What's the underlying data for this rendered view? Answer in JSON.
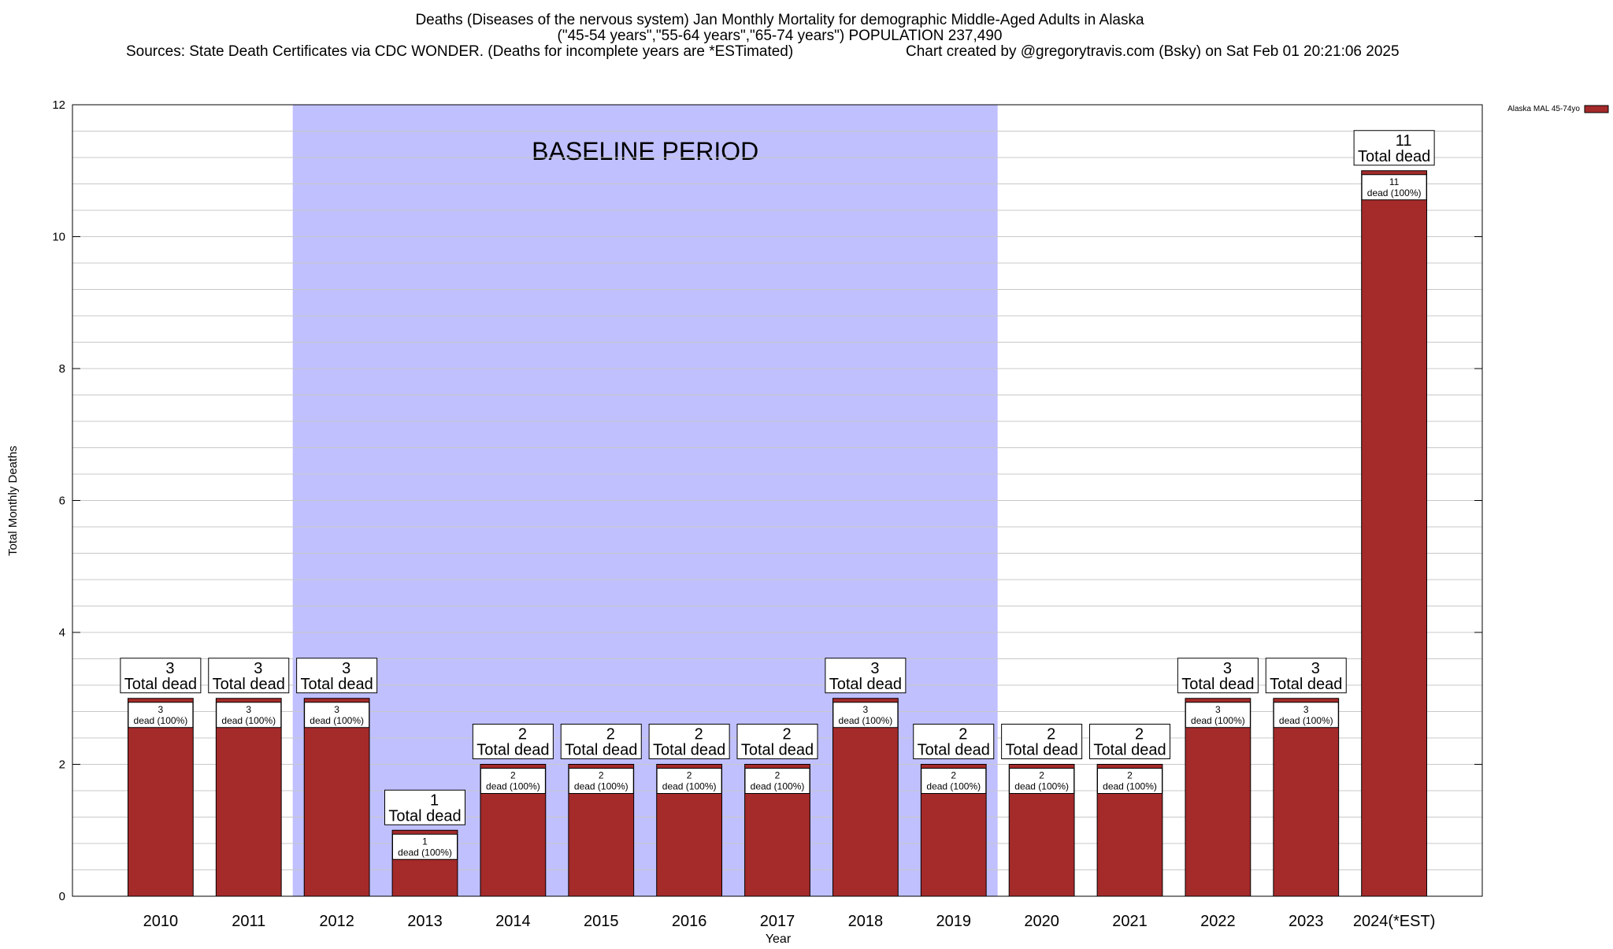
{
  "chart_data": {
    "type": "bar",
    "title_lines": [
      "Deaths (Diseases of the nervous system) Jan Monthly Mortality for demographic Middle-Aged Adults in Alaska",
      "(\"45-54 years\",\"55-64 years\",\"65-74 years\") POPULATION 237,490"
    ],
    "sources": "Sources: State Death Certificates via CDC WONDER. (Deaths for incomplete years are *ESTimated)",
    "credit": "Chart created by @gregorytravis.com (Bsky) on Sat Feb 01 20:21:06 2025",
    "xlabel": "Year",
    "ylabel": "Total Monthly Deaths",
    "ylim": [
      0,
      12
    ],
    "y_major_ticks": [
      0,
      2,
      4,
      6,
      8,
      10,
      12
    ],
    "y_minor_step": 0.4,
    "grid": true,
    "categories": [
      "2010",
      "2011",
      "2012",
      "2013",
      "2014",
      "2015",
      "2016",
      "2017",
      "2018",
      "2019",
      "2020",
      "2021",
      "2022",
      "2023",
      "2024(*EST)"
    ],
    "series": [
      {
        "name": "Alaska MAL 45-74yo",
        "color": "#a52a2a",
        "values": [
          3,
          3,
          3,
          1,
          2,
          2,
          2,
          2,
          3,
          2,
          2,
          2,
          3,
          3,
          11
        ]
      }
    ],
    "total_label_suffix": "Total dead",
    "inner_label_suffix": "dead (100%)",
    "baseline_period": {
      "label": "BASELINE PERIOD",
      "from_category": "2012",
      "to_category": "2019",
      "color": "#c0c0ff"
    },
    "legend": {
      "placement": "top-right",
      "entry": "Alaska MAL 45-74yo"
    }
  }
}
